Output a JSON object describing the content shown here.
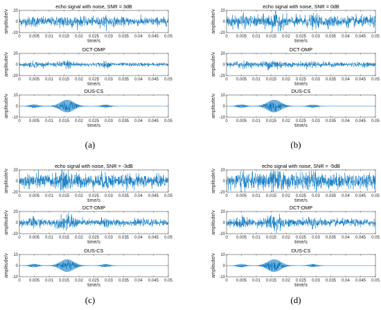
{
  "signal_color": "#0072BD",
  "axes_color": "#262626",
  "panels": [
    {
      "caption": "(a)",
      "subplots": [
        {
          "title": "echo signal with noise, SNR = 3dB",
          "kind": "noisy"
        },
        {
          "title": "DCT-OMP",
          "kind": "omp"
        },
        {
          "title": "DUS-CS",
          "kind": "cs"
        }
      ]
    },
    {
      "caption": "(b)",
      "subplots": [
        {
          "title": "echo signal with noise, SNR = 0dB",
          "kind": "noisy"
        },
        {
          "title": "DCT-OMP",
          "kind": "omp"
        },
        {
          "title": "DUS-CS",
          "kind": "cs"
        }
      ]
    },
    {
      "caption": "(c)",
      "subplots": [
        {
          "title": "echo signal with noise, SNR = -3dB",
          "kind": "noisy"
        },
        {
          "title": "DCT-OMP",
          "kind": "omp"
        },
        {
          "title": "DUS-CS",
          "kind": "cs"
        }
      ]
    },
    {
      "caption": "(d)",
      "subplots": [
        {
          "title": "echo signal with noise, SNR = -5dB",
          "kind": "noisy"
        },
        {
          "title": "DCT-OMP",
          "kind": "omp"
        },
        {
          "title": "DUS-CS",
          "kind": "cs"
        }
      ]
    }
  ],
  "chart_data": {
    "type": "line",
    "xlabel": "time/s",
    "ylabel": "amplitude/v",
    "xlim": [
      0,
      0.05
    ],
    "xticks": [
      "0",
      "0.005",
      "0.01",
      "0.015",
      "0.02",
      "0.025",
      "0.03",
      "0.035",
      "0.04",
      "0.045",
      "0.05"
    ],
    "ylims": {
      "noisy": [
        -20,
        20
      ],
      "omp": [
        -20,
        20
      ],
      "cs": [
        -10,
        10
      ]
    },
    "yticks": {
      "noisy": [
        "-20",
        "0",
        "20"
      ],
      "omp": [
        "-20",
        "0",
        "20"
      ],
      "cs": [
        "-10",
        "0",
        "10"
      ]
    },
    "echo_pulses_s": [
      0.005,
      0.016,
      0.029
    ],
    "peak_amplitude_v": 6
  }
}
